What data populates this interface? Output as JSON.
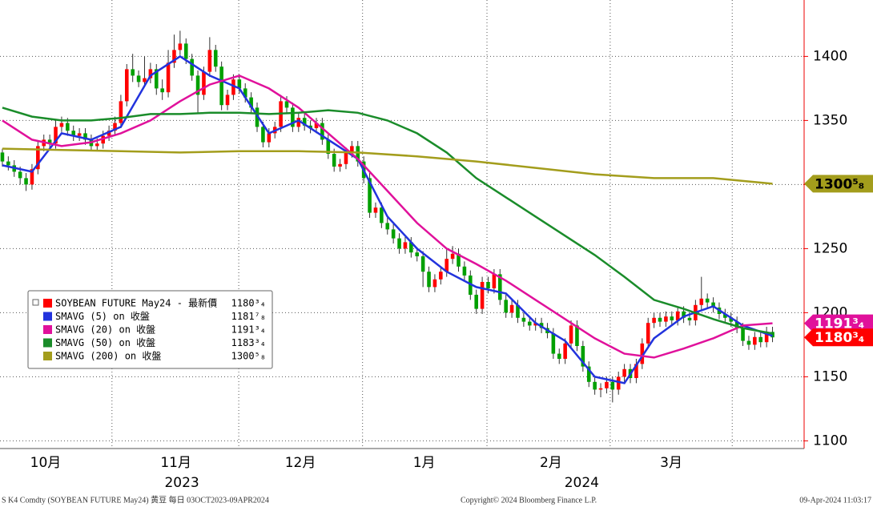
{
  "chart_data": {
    "type": "candlestick",
    "ylim": [
      1094,
      1444
    ],
    "yticks": [
      1100,
      1150,
      1200,
      1250,
      1300,
      1350,
      1400
    ],
    "xlim": [
      -0.4,
      135.2
    ],
    "xgrid": [
      18.5,
      39.9,
      60.8,
      81.8,
      102.6,
      123.2
    ],
    "xticks": [
      {
        "value": 7.3,
        "label": "10月"
      },
      {
        "value": 29.3,
        "label": "11月"
      },
      {
        "value": 50.3,
        "label": "12月"
      },
      {
        "value": 71.2,
        "label": "1月"
      },
      {
        "value": 92.6,
        "label": "2月"
      },
      {
        "value": 112.9,
        "label": "3月"
      }
    ],
    "xticks2": [
      {
        "value": 30.3,
        "label": "2023"
      },
      {
        "value": 97.8,
        "label": "2024"
      }
    ],
    "up_color": "#ff0000",
    "down_color": "#00a000",
    "price": {
      "name": "SOYBEAN FUTURE May24 - 最新價",
      "color": "#ff0000",
      "value_label": "1180³₄"
    },
    "ohlc": [
      [
        1325,
        1328,
        1314,
        1318
      ],
      [
        1318,
        1322,
        1311,
        1315
      ],
      [
        1315,
        1319,
        1306,
        1310
      ],
      [
        1310,
        1314,
        1300,
        1305
      ],
      [
        1305,
        1309,
        1295,
        1300
      ],
      [
        1300,
        1316,
        1296,
        1312
      ],
      [
        1312,
        1334,
        1308,
        1330
      ],
      [
        1330,
        1339,
        1326,
        1335
      ],
      [
        1335,
        1339,
        1328,
        1332
      ],
      [
        1332,
        1350,
        1328,
        1345
      ],
      [
        1345,
        1353,
        1341,
        1348
      ],
      [
        1348,
        1352,
        1338,
        1342
      ],
      [
        1342,
        1346,
        1334,
        1338
      ],
      [
        1338,
        1344,
        1334,
        1340
      ],
      [
        1340,
        1344,
        1331,
        1335
      ],
      [
        1335,
        1339,
        1326,
        1330
      ],
      [
        1330,
        1336,
        1326,
        1332
      ],
      [
        1332,
        1342,
        1328,
        1338
      ],
      [
        1338,
        1346,
        1334,
        1342
      ],
      [
        1342,
        1353,
        1338,
        1348
      ],
      [
        1348,
        1370,
        1344,
        1365
      ],
      [
        1365,
        1394,
        1361,
        1390
      ],
      [
        1390,
        1402,
        1380,
        1385
      ],
      [
        1385,
        1389,
        1376,
        1380
      ],
      [
        1380,
        1400,
        1376,
        1383
      ],
      [
        1383,
        1395,
        1379,
        1390
      ],
      [
        1390,
        1394,
        1370,
        1375
      ],
      [
        1375,
        1382,
        1366,
        1372
      ],
      [
        1372,
        1405,
        1368,
        1395
      ],
      [
        1395,
        1417,
        1391,
        1405
      ],
      [
        1405,
        1420,
        1401,
        1410
      ],
      [
        1410,
        1414,
        1394,
        1398
      ],
      [
        1398,
        1402,
        1381,
        1385
      ],
      [
        1385,
        1389,
        1356,
        1370
      ],
      [
        1370,
        1392,
        1366,
        1388
      ],
      [
        1388,
        1415,
        1384,
        1405
      ],
      [
        1405,
        1409,
        1388,
        1392
      ],
      [
        1392,
        1396,
        1358,
        1362
      ],
      [
        1362,
        1374,
        1358,
        1370
      ],
      [
        1370,
        1386,
        1366,
        1382
      ],
      [
        1382,
        1386,
        1371,
        1375
      ],
      [
        1375,
        1379,
        1364,
        1368
      ],
      [
        1368,
        1372,
        1356,
        1360
      ],
      [
        1360,
        1364,
        1341,
        1345
      ],
      [
        1345,
        1349,
        1329,
        1333
      ],
      [
        1333,
        1344,
        1329,
        1340
      ],
      [
        1340,
        1349,
        1336,
        1345
      ],
      [
        1345,
        1370,
        1341,
        1365
      ],
      [
        1365,
        1369,
        1356,
        1360
      ],
      [
        1360,
        1364,
        1341,
        1345
      ],
      [
        1345,
        1356,
        1341,
        1352
      ],
      [
        1352,
        1356,
        1342,
        1346
      ],
      [
        1346,
        1350,
        1340,
        1344
      ],
      [
        1344,
        1352,
        1340,
        1348
      ],
      [
        1348,
        1352,
        1331,
        1335
      ],
      [
        1335,
        1339,
        1320,
        1324
      ],
      [
        1324,
        1328,
        1310,
        1314
      ],
      [
        1314,
        1320,
        1310,
        1316
      ],
      [
        1316,
        1329,
        1312,
        1325
      ],
      [
        1325,
        1334,
        1321,
        1330
      ],
      [
        1330,
        1334,
        1314,
        1318
      ],
      [
        1318,
        1322,
        1301,
        1305
      ],
      [
        1305,
        1309,
        1274,
        1278
      ],
      [
        1278,
        1286,
        1274,
        1282
      ],
      [
        1282,
        1286,
        1266,
        1270
      ],
      [
        1270,
        1274,
        1261,
        1265
      ],
      [
        1265,
        1269,
        1254,
        1258
      ],
      [
        1258,
        1262,
        1246,
        1250
      ],
      [
        1250,
        1259,
        1246,
        1255
      ],
      [
        1255,
        1259,
        1243,
        1247
      ],
      [
        1247,
        1251,
        1240,
        1244
      ],
      [
        1244,
        1248,
        1220,
        1232
      ],
      [
        1232,
        1236,
        1216,
        1220
      ],
      [
        1220,
        1230,
        1216,
        1226
      ],
      [
        1226,
        1236,
        1222,
        1232
      ],
      [
        1232,
        1250,
        1228,
        1242
      ],
      [
        1242,
        1252,
        1238,
        1246
      ],
      [
        1246,
        1250,
        1232,
        1236
      ],
      [
        1236,
        1240,
        1225,
        1229
      ],
      [
        1229,
        1233,
        1210,
        1214
      ],
      [
        1214,
        1218,
        1199,
        1203
      ],
      [
        1203,
        1228,
        1199,
        1224
      ],
      [
        1224,
        1228,
        1215,
        1219
      ],
      [
        1219,
        1234,
        1215,
        1230
      ],
      [
        1230,
        1234,
        1206,
        1210
      ],
      [
        1210,
        1214,
        1196,
        1200
      ],
      [
        1200,
        1210,
        1196,
        1206
      ],
      [
        1206,
        1210,
        1192,
        1196
      ],
      [
        1196,
        1200,
        1189,
        1193
      ],
      [
        1193,
        1197,
        1186,
        1190
      ],
      [
        1190,
        1196,
        1186,
        1192
      ],
      [
        1192,
        1196,
        1184,
        1188
      ],
      [
        1188,
        1192,
        1180,
        1184
      ],
      [
        1184,
        1188,
        1164,
        1168
      ],
      [
        1168,
        1172,
        1160,
        1164
      ],
      [
        1164,
        1180,
        1160,
        1176
      ],
      [
        1176,
        1194,
        1172,
        1190
      ],
      [
        1190,
        1194,
        1170,
        1174
      ],
      [
        1174,
        1178,
        1154,
        1158
      ],
      [
        1158,
        1162,
        1142,
        1146
      ],
      [
        1146,
        1150,
        1136,
        1140
      ],
      [
        1140,
        1145,
        1134,
        1141
      ],
      [
        1141,
        1150,
        1137,
        1146
      ],
      [
        1146,
        1150,
        1130,
        1140
      ],
      [
        1140,
        1154,
        1136,
        1150
      ],
      [
        1150,
        1160,
        1146,
        1156
      ],
      [
        1156,
        1160,
        1145,
        1149
      ],
      [
        1149,
        1164,
        1145,
        1160
      ],
      [
        1160,
        1180,
        1156,
        1176
      ],
      [
        1176,
        1196,
        1172,
        1192
      ],
      [
        1192,
        1200,
        1188,
        1196
      ],
      [
        1196,
        1200,
        1189,
        1193
      ],
      [
        1193,
        1201,
        1189,
        1197
      ],
      [
        1197,
        1201,
        1190,
        1194
      ],
      [
        1194,
        1205,
        1190,
        1201
      ],
      [
        1201,
        1205,
        1192,
        1196
      ],
      [
        1196,
        1200,
        1190,
        1194
      ],
      [
        1194,
        1210,
        1190,
        1206
      ],
      [
        1206,
        1228,
        1202,
        1211
      ],
      [
        1211,
        1215,
        1204,
        1208
      ],
      [
        1208,
        1212,
        1200,
        1204
      ],
      [
        1204,
        1208,
        1195,
        1199
      ],
      [
        1199,
        1203,
        1192,
        1196
      ],
      [
        1196,
        1200,
        1189,
        1193
      ],
      [
        1193,
        1197,
        1184,
        1188
      ],
      [
        1188,
        1192,
        1174,
        1178
      ],
      [
        1178,
        1182,
        1171,
        1175
      ],
      [
        1175,
        1185,
        1171,
        1181
      ],
      [
        1181,
        1185,
        1173,
        1177
      ],
      [
        1177,
        1189,
        1173,
        1185
      ],
      [
        1185,
        1189,
        1177,
        1180.75
      ]
    ],
    "series": [
      {
        "name": "SMAVG (5)  on 收盤",
        "color": "#2233dd",
        "value_label": "1181⁷₈",
        "x": [
          0,
          5,
          10,
          15,
          20,
          25,
          30,
          35,
          40,
          45,
          50,
          55,
          60,
          65,
          70,
          75,
          80,
          85,
          90,
          95,
          100,
          105,
          110,
          115,
          120,
          125,
          130
        ],
        "values": [
          1315,
          1310,
          1340,
          1335,
          1345,
          1385,
          1400,
          1385,
          1375,
          1340,
          1350,
          1335,
          1320,
          1275,
          1250,
          1232,
          1220,
          1215,
          1192,
          1178,
          1150,
          1145,
          1180,
          1197,
          1205,
          1190,
          1181.875
        ]
      },
      {
        "name": "SMAVG (20)  on 收盤",
        "color": "#e0119b",
        "value_label": "1191³₄",
        "tag": true,
        "x": [
          0,
          5,
          10,
          15,
          20,
          25,
          30,
          35,
          40,
          45,
          50,
          55,
          60,
          65,
          70,
          75,
          80,
          85,
          90,
          95,
          100,
          105,
          110,
          115,
          120,
          125,
          130
        ],
        "values": [
          1350,
          1335,
          1330,
          1333,
          1340,
          1350,
          1365,
          1378,
          1385,
          1375,
          1360,
          1340,
          1320,
          1295,
          1270,
          1250,
          1238,
          1225,
          1210,
          1195,
          1180,
          1168,
          1165,
          1172,
          1180,
          1190,
          1191.75
        ]
      },
      {
        "name": "SMAVG (50)  on 收盤",
        "color": "#1a8c2a",
        "value_label": "1183³₄",
        "x": [
          0,
          5,
          10,
          15,
          20,
          25,
          30,
          35,
          40,
          45,
          50,
          55,
          60,
          65,
          70,
          75,
          80,
          85,
          90,
          95,
          100,
          105,
          110,
          115,
          120,
          125,
          130
        ],
        "values": [
          1360,
          1353,
          1350,
          1350,
          1352,
          1355,
          1355,
          1356,
          1356,
          1355,
          1356,
          1358,
          1356,
          1350,
          1340,
          1325,
          1305,
          1290,
          1275,
          1260,
          1245,
          1228,
          1210,
          1203,
          1195,
          1188,
          1183.75
        ]
      },
      {
        "name": "SMAVG (200)  on 收盤",
        "color": "#a39d1c",
        "value_label": "1300⁵₈",
        "tag": true,
        "x": [
          0,
          10,
          20,
          30,
          40,
          50,
          60,
          70,
          80,
          90,
          100,
          110,
          120,
          130
        ],
        "values": [
          1328,
          1327,
          1326,
          1325,
          1326,
          1326,
          1325,
          1322,
          1318,
          1313,
          1308,
          1305,
          1305,
          1300.625
        ]
      }
    ],
    "footer_left": "S K4 Comdty (SOYBEAN FUTURE    May24) 黄豆  每日 03OCT2023-09APR2024",
    "footer_center": "Copyright© 2024 Bloomberg Finance L.P.",
    "footer_right": "09-Apr-2024 11:03:17"
  }
}
